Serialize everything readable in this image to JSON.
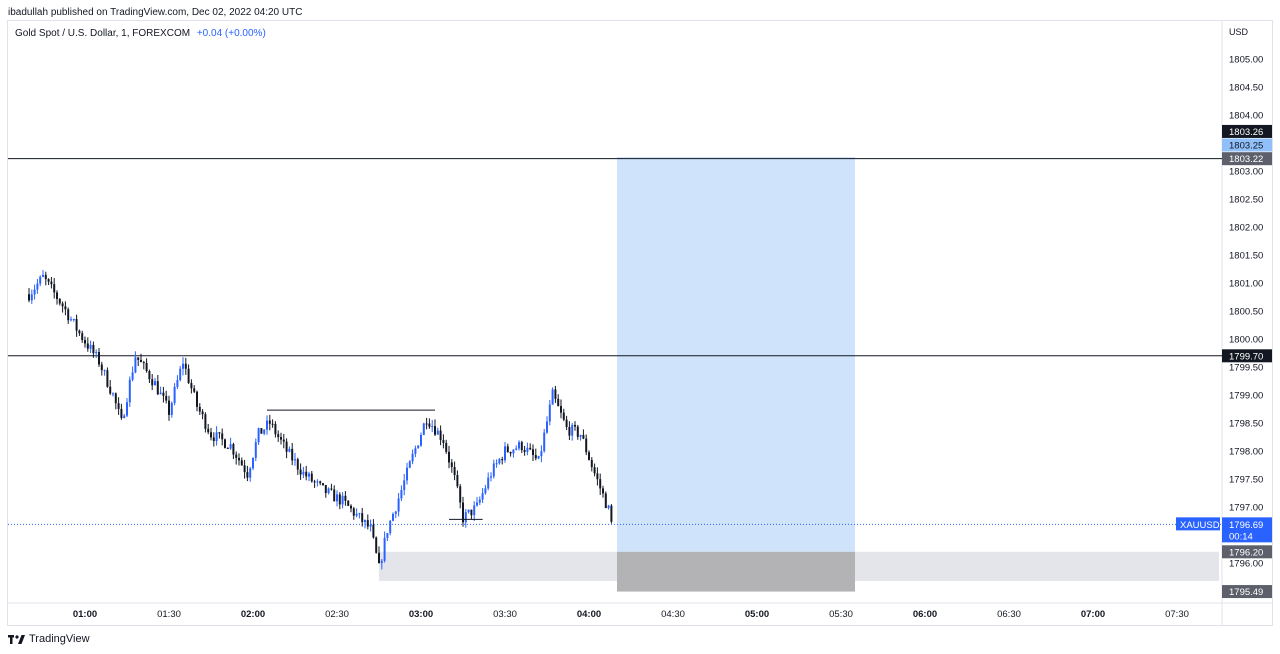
{
  "publisher": "ibadullah published on TradingView.com, Dec 02, 2022 04:20 UTC",
  "legend": {
    "symbol": "Gold Spot / U.S. Dollar, 1, FOREXCOM",
    "change": "+0.04 (+0.00%)"
  },
  "footer": {
    "brand": "TradingView"
  },
  "colors": {
    "up": "#2962ff",
    "down": "#131722",
    "long_zone": "#cfe3fa",
    "gray_zone": "#e4e5ea",
    "dark_zone": "#b3b3b5",
    "price_line": "#2962ff",
    "level_line": "#131722"
  },
  "chart_data": {
    "type": "candlestick",
    "currency": "USD",
    "ylim": [
      1795.1,
      1805.5
    ],
    "y_ticks": [
      "1796.00",
      "1797.00",
      "1797.50",
      "1798.00",
      "1798.50",
      "1799.00",
      "1799.50",
      "1800.00",
      "1800.50",
      "1801.00",
      "1801.50",
      "1802.00",
      "1802.50",
      "1803.00",
      "1804.00",
      "1804.50",
      "1805.00"
    ],
    "x_ticks": [
      {
        "label": "01:00",
        "bold": true
      },
      {
        "label": "01:30",
        "bold": false
      },
      {
        "label": "02:00",
        "bold": true
      },
      {
        "label": "02:30",
        "bold": false
      },
      {
        "label": "03:00",
        "bold": true
      },
      {
        "label": "03:30",
        "bold": false
      },
      {
        "label": "04:00",
        "bold": true
      },
      {
        "label": "04:30",
        "bold": false
      },
      {
        "label": "05:00",
        "bold": true
      },
      {
        "label": "05:30",
        "bold": false
      },
      {
        "label": "06:00",
        "bold": true
      },
      {
        "label": "06:30",
        "bold": false
      },
      {
        "label": "07:00",
        "bold": true
      },
      {
        "label": "07:30",
        "bold": false
      }
    ],
    "time_start": "00:40",
    "time_end": "07:45",
    "close_path": [
      [
        "00:40",
        1800.8
      ],
      [
        "00:45",
        1801.1
      ],
      [
        "00:52",
        1800.6
      ],
      [
        "00:58",
        1800.1
      ],
      [
        "01:05",
        1799.6
      ],
      [
        "01:10",
        1799.0
      ],
      [
        "01:13",
        1798.5
      ],
      [
        "01:18",
        1799.7
      ],
      [
        "01:25",
        1799.2
      ],
      [
        "01:30",
        1798.7
      ],
      [
        "01:35",
        1799.6
      ],
      [
        "01:40",
        1798.8
      ],
      [
        "01:45",
        1798.3
      ],
      [
        "01:52",
        1798.1
      ],
      [
        "01:58",
        1797.6
      ],
      [
        "02:02",
        1798.3
      ],
      [
        "02:06",
        1798.5
      ],
      [
        "02:12",
        1798.0
      ],
      [
        "02:18",
        1797.6
      ],
      [
        "02:25",
        1797.3
      ],
      [
        "02:32",
        1797.1
      ],
      [
        "02:38",
        1796.8
      ],
      [
        "02:42",
        1796.6
      ],
      [
        "02:45",
        1795.9
      ],
      [
        "02:48",
        1796.6
      ],
      [
        "02:53",
        1797.3
      ],
      [
        "02:57",
        1797.9
      ],
      [
        "03:02",
        1798.6
      ],
      [
        "03:08",
        1798.2
      ],
      [
        "03:12",
        1797.5
      ],
      [
        "03:15",
        1796.8
      ],
      [
        "03:20",
        1797.0
      ],
      [
        "03:25",
        1797.6
      ],
      [
        "03:30",
        1798.0
      ],
      [
        "03:36",
        1798.1
      ],
      [
        "03:42",
        1797.8
      ],
      [
        "03:47",
        1799.0
      ],
      [
        "03:52",
        1798.4
      ],
      [
        "03:57",
        1798.3
      ],
      [
        "04:02",
        1797.6
      ],
      [
        "04:07",
        1796.95
      ],
      [
        "04:08",
        1796.7
      ]
    ],
    "current_price": "1796.69",
    "countdown": "00:14",
    "ticker": "XAUUSD",
    "horizontal_levels": [
      "1803.22",
      "1799.70"
    ],
    "axis_labels": [
      {
        "text": "1803.26",
        "value": 1803.26,
        "style": "black"
      },
      {
        "text": "1803.25",
        "value": 1803.25,
        "style": "blue-light"
      },
      {
        "text": "1803.22",
        "value": 1803.22,
        "style": "gray-dark"
      },
      {
        "text": "1799.70",
        "value": 1799.7,
        "style": "black"
      },
      {
        "text": "1796.20",
        "value": 1796.2,
        "style": "gray-dark"
      },
      {
        "text": "1795.49",
        "value": 1795.49,
        "style": "gray-dark"
      }
    ],
    "drawings": {
      "long_position": {
        "time_from": "04:10",
        "time_to": "05:35",
        "top": 1803.25,
        "entry": 1796.2,
        "bottom": 1795.49
      },
      "range_zone": {
        "time_from": "02:45",
        "time_to": "07:45",
        "top": 1796.2,
        "bottom": 1795.68
      },
      "marker_high": {
        "time_from": "02:05",
        "time_to": "03:05",
        "value": 1798.73
      },
      "marker_low": {
        "time_from": "03:10",
        "time_to": "03:22",
        "value": 1796.78
      }
    }
  }
}
